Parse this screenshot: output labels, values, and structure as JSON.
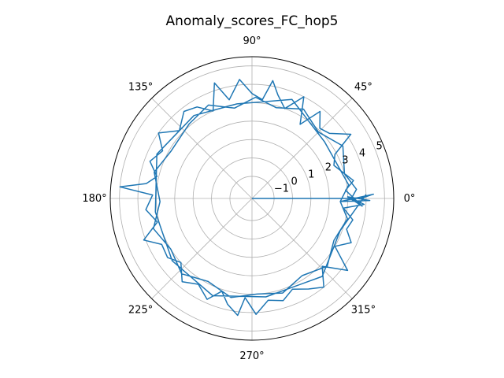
{
  "chart_data": {
    "type": "line",
    "projection": "polar",
    "title": "Anomaly_scores_FC_hop5",
    "theta_tick_labels": [
      "0°",
      "45°",
      "90°",
      "135°",
      "180°",
      "225°",
      "270°",
      "315°"
    ],
    "theta_ticks_deg": [
      0,
      45,
      90,
      135,
      180,
      225,
      270,
      315
    ],
    "r_tick_labels": [
      "−1",
      "0",
      "1",
      "2",
      "3",
      "4",
      "5"
    ],
    "r_ticks": [
      -1,
      0,
      1,
      2,
      3,
      4,
      5
    ],
    "rlim": [
      -2.2,
      5.5
    ],
    "r_label_angle_deg": 22.5,
    "grid": true,
    "series": [
      {
        "color": "#1f77b4",
        "points": [
          [
            0,
            -2.2
          ],
          [
            0,
            3.7
          ],
          [
            2,
            4.4
          ],
          [
            -2,
            2.6
          ],
          [
            -1,
            4.2
          ],
          [
            1,
            3.0
          ],
          [
            -4,
            3.8
          ],
          [
            5,
            2.9
          ],
          [
            10,
            3.4
          ],
          [
            22,
            2.6
          ],
          [
            28,
            2.9
          ],
          [
            33,
            4.2
          ],
          [
            40,
            3.3
          ],
          [
            46,
            3.1
          ],
          [
            52,
            3.8
          ],
          [
            57,
            2.6
          ],
          [
            63,
            4.0
          ],
          [
            70,
            3.0
          ],
          [
            76,
            3.6
          ],
          [
            80,
            4.3
          ],
          [
            84,
            3.2
          ],
          [
            90,
            3.5
          ],
          [
            96,
            4.3
          ],
          [
            103,
            3.3
          ],
          [
            108,
            4.4
          ],
          [
            114,
            3.0
          ],
          [
            121,
            3.6
          ],
          [
            128,
            3.8
          ],
          [
            137,
            3.2
          ],
          [
            145,
            4.0
          ],
          [
            152,
            3.3
          ],
          [
            160,
            3.7
          ],
          [
            167,
            3.1
          ],
          [
            172,
            3.6
          ],
          [
            175,
            5.0
          ],
          [
            178,
            3.2
          ],
          [
            186,
            3.6
          ],
          [
            194,
            3.1
          ],
          [
            201,
            4.1
          ],
          [
            207,
            3.3
          ],
          [
            215,
            3.4
          ],
          [
            222,
            3.0
          ],
          [
            230,
            3.7
          ],
          [
            238,
            3.3
          ],
          [
            246,
            3.8
          ],
          [
            252,
            3.1
          ],
          [
            257,
            3.7
          ],
          [
            263,
            4.2
          ],
          [
            266,
            3.2
          ],
          [
            272,
            4.1
          ],
          [
            279,
            3.4
          ],
          [
            287,
            3.6
          ],
          [
            294,
            3.2
          ],
          [
            302,
            3.6
          ],
          [
            309,
            4.0
          ],
          [
            316,
            3.1
          ],
          [
            323,
            4.3
          ],
          [
            330,
            3.0
          ],
          [
            336,
            3.7
          ],
          [
            342,
            3.2
          ],
          [
            348,
            3.4
          ],
          [
            354,
            2.8
          ],
          [
            357,
            3.9
          ],
          [
            360,
            3.2
          ],
          [
            5,
            3.5
          ],
          [
            15,
            3.0
          ],
          [
            30,
            3.5
          ],
          [
            45,
            2.9
          ],
          [
            60,
            3.4
          ],
          [
            75,
            2.9
          ],
          [
            88,
            3.3
          ],
          [
            101,
            2.8
          ],
          [
            115,
            3.4
          ],
          [
            130,
            3.1
          ],
          [
            150,
            2.9
          ],
          [
            165,
            3.3
          ],
          [
            182,
            2.8
          ],
          [
            197,
            3.4
          ],
          [
            212,
            3.0
          ],
          [
            227,
            3.4
          ],
          [
            242,
            2.9
          ],
          [
            258,
            3.3
          ],
          [
            273,
            3.0
          ],
          [
            288,
            3.2
          ],
          [
            303,
            2.8
          ],
          [
            318,
            3.3
          ],
          [
            333,
            2.8
          ],
          [
            348,
            3.1
          ],
          [
            358,
            2.6
          ],
          [
            8,
            3.1
          ],
          [
            38,
            2.8
          ],
          [
            68,
            3.6
          ],
          [
            99,
            3.0
          ],
          [
            125,
            3.3
          ],
          [
            155,
            3.5
          ],
          [
            188,
            3.1
          ],
          [
            218,
            3.3
          ],
          [
            248,
            3.5
          ],
          [
            278,
            3.2
          ],
          [
            312,
            3.5
          ],
          [
            340,
            2.9
          ],
          [
            2,
            4.0
          ]
        ]
      }
    ]
  }
}
